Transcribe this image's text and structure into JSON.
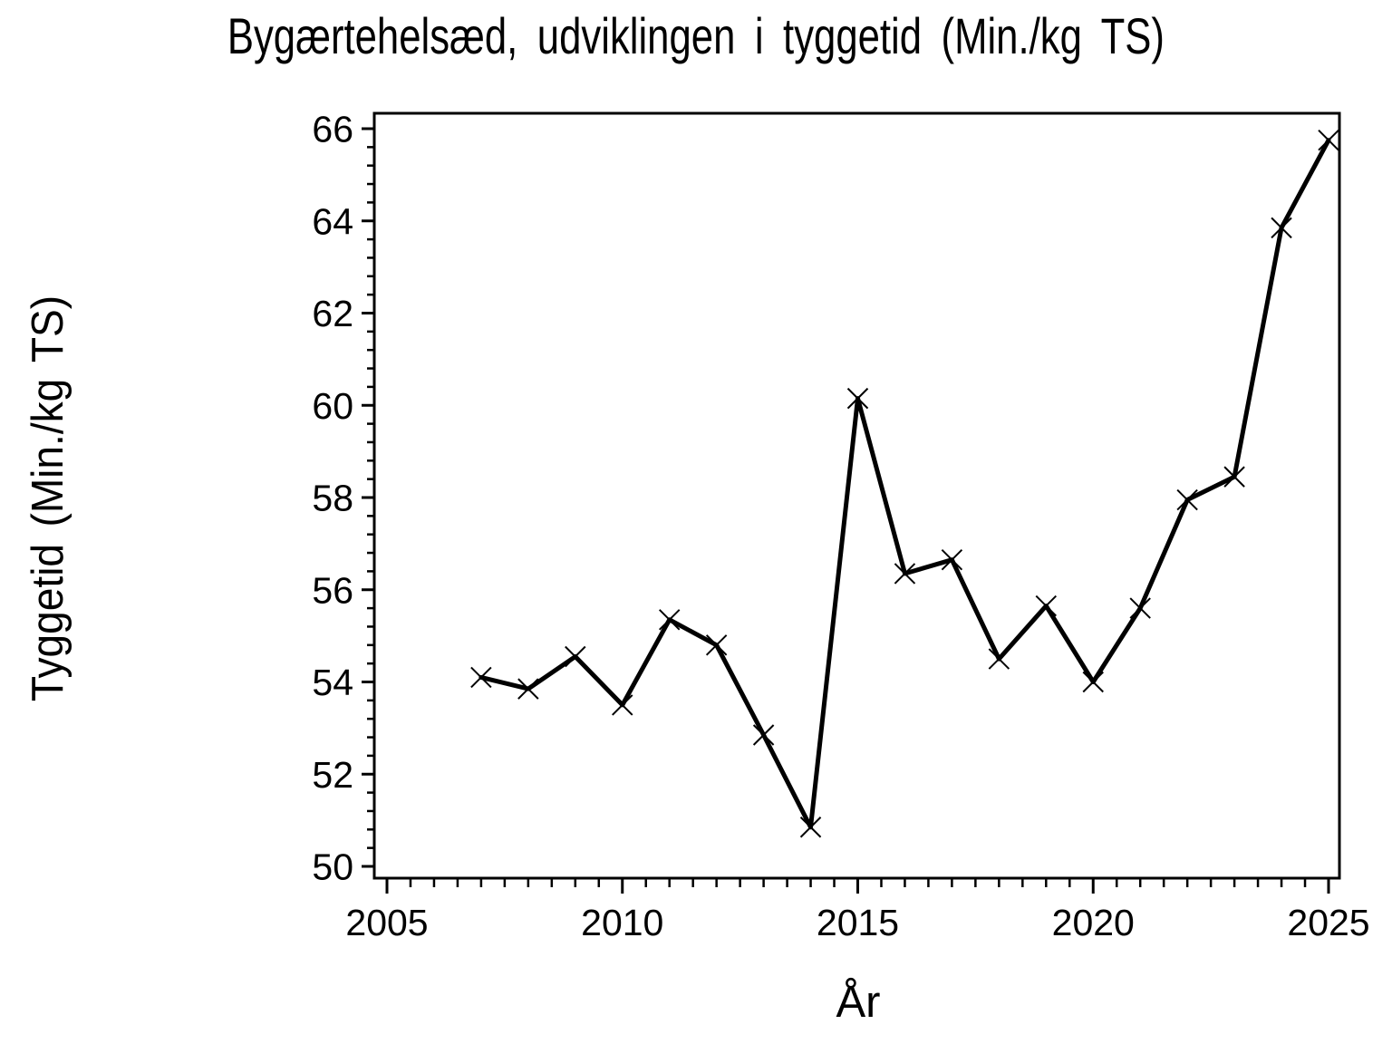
{
  "page": {
    "background_color": "#ffffff",
    "ink_color": "#000000"
  },
  "chart_data": {
    "type": "line",
    "title": "Bygærtehelsæd, udviklingen i tyggetid (Min./kg TS)",
    "xlabel": "År",
    "ylabel": "Tyggetid (Min./kg TS)",
    "x": [
      2007,
      2008,
      2009,
      2010,
      2011,
      2012,
      2013,
      2014,
      2015,
      2016,
      2017,
      2018,
      2019,
      2020,
      2021,
      2022,
      2023,
      2024,
      2025
    ],
    "values": [
      54.1,
      53.85,
      54.55,
      53.5,
      55.35,
      54.8,
      52.85,
      50.85,
      60.15,
      56.35,
      56.65,
      54.5,
      55.65,
      54.0,
      55.6,
      57.95,
      58.45,
      63.85,
      65.75
    ],
    "xlim": [
      2005,
      2025
    ],
    "ylim": [
      50,
      66
    ],
    "x_major_ticks": [
      2005,
      2010,
      2015,
      2020,
      2025
    ],
    "y_major_ticks": [
      50,
      52,
      54,
      56,
      58,
      60,
      62,
      64,
      66
    ],
    "x_tick_labels": [
      "2005",
      "2010",
      "2015",
      "2020",
      "2025"
    ],
    "y_tick_labels": [
      "50",
      "52",
      "54",
      "56",
      "58",
      "60",
      "62",
      "64",
      "66"
    ],
    "x_minor_step": 0.5,
    "y_minor_step": 0.4,
    "marker": "x-cross-marker",
    "line_color": "#000000",
    "grid": "off",
    "frame": "box",
    "legend": "none"
  }
}
